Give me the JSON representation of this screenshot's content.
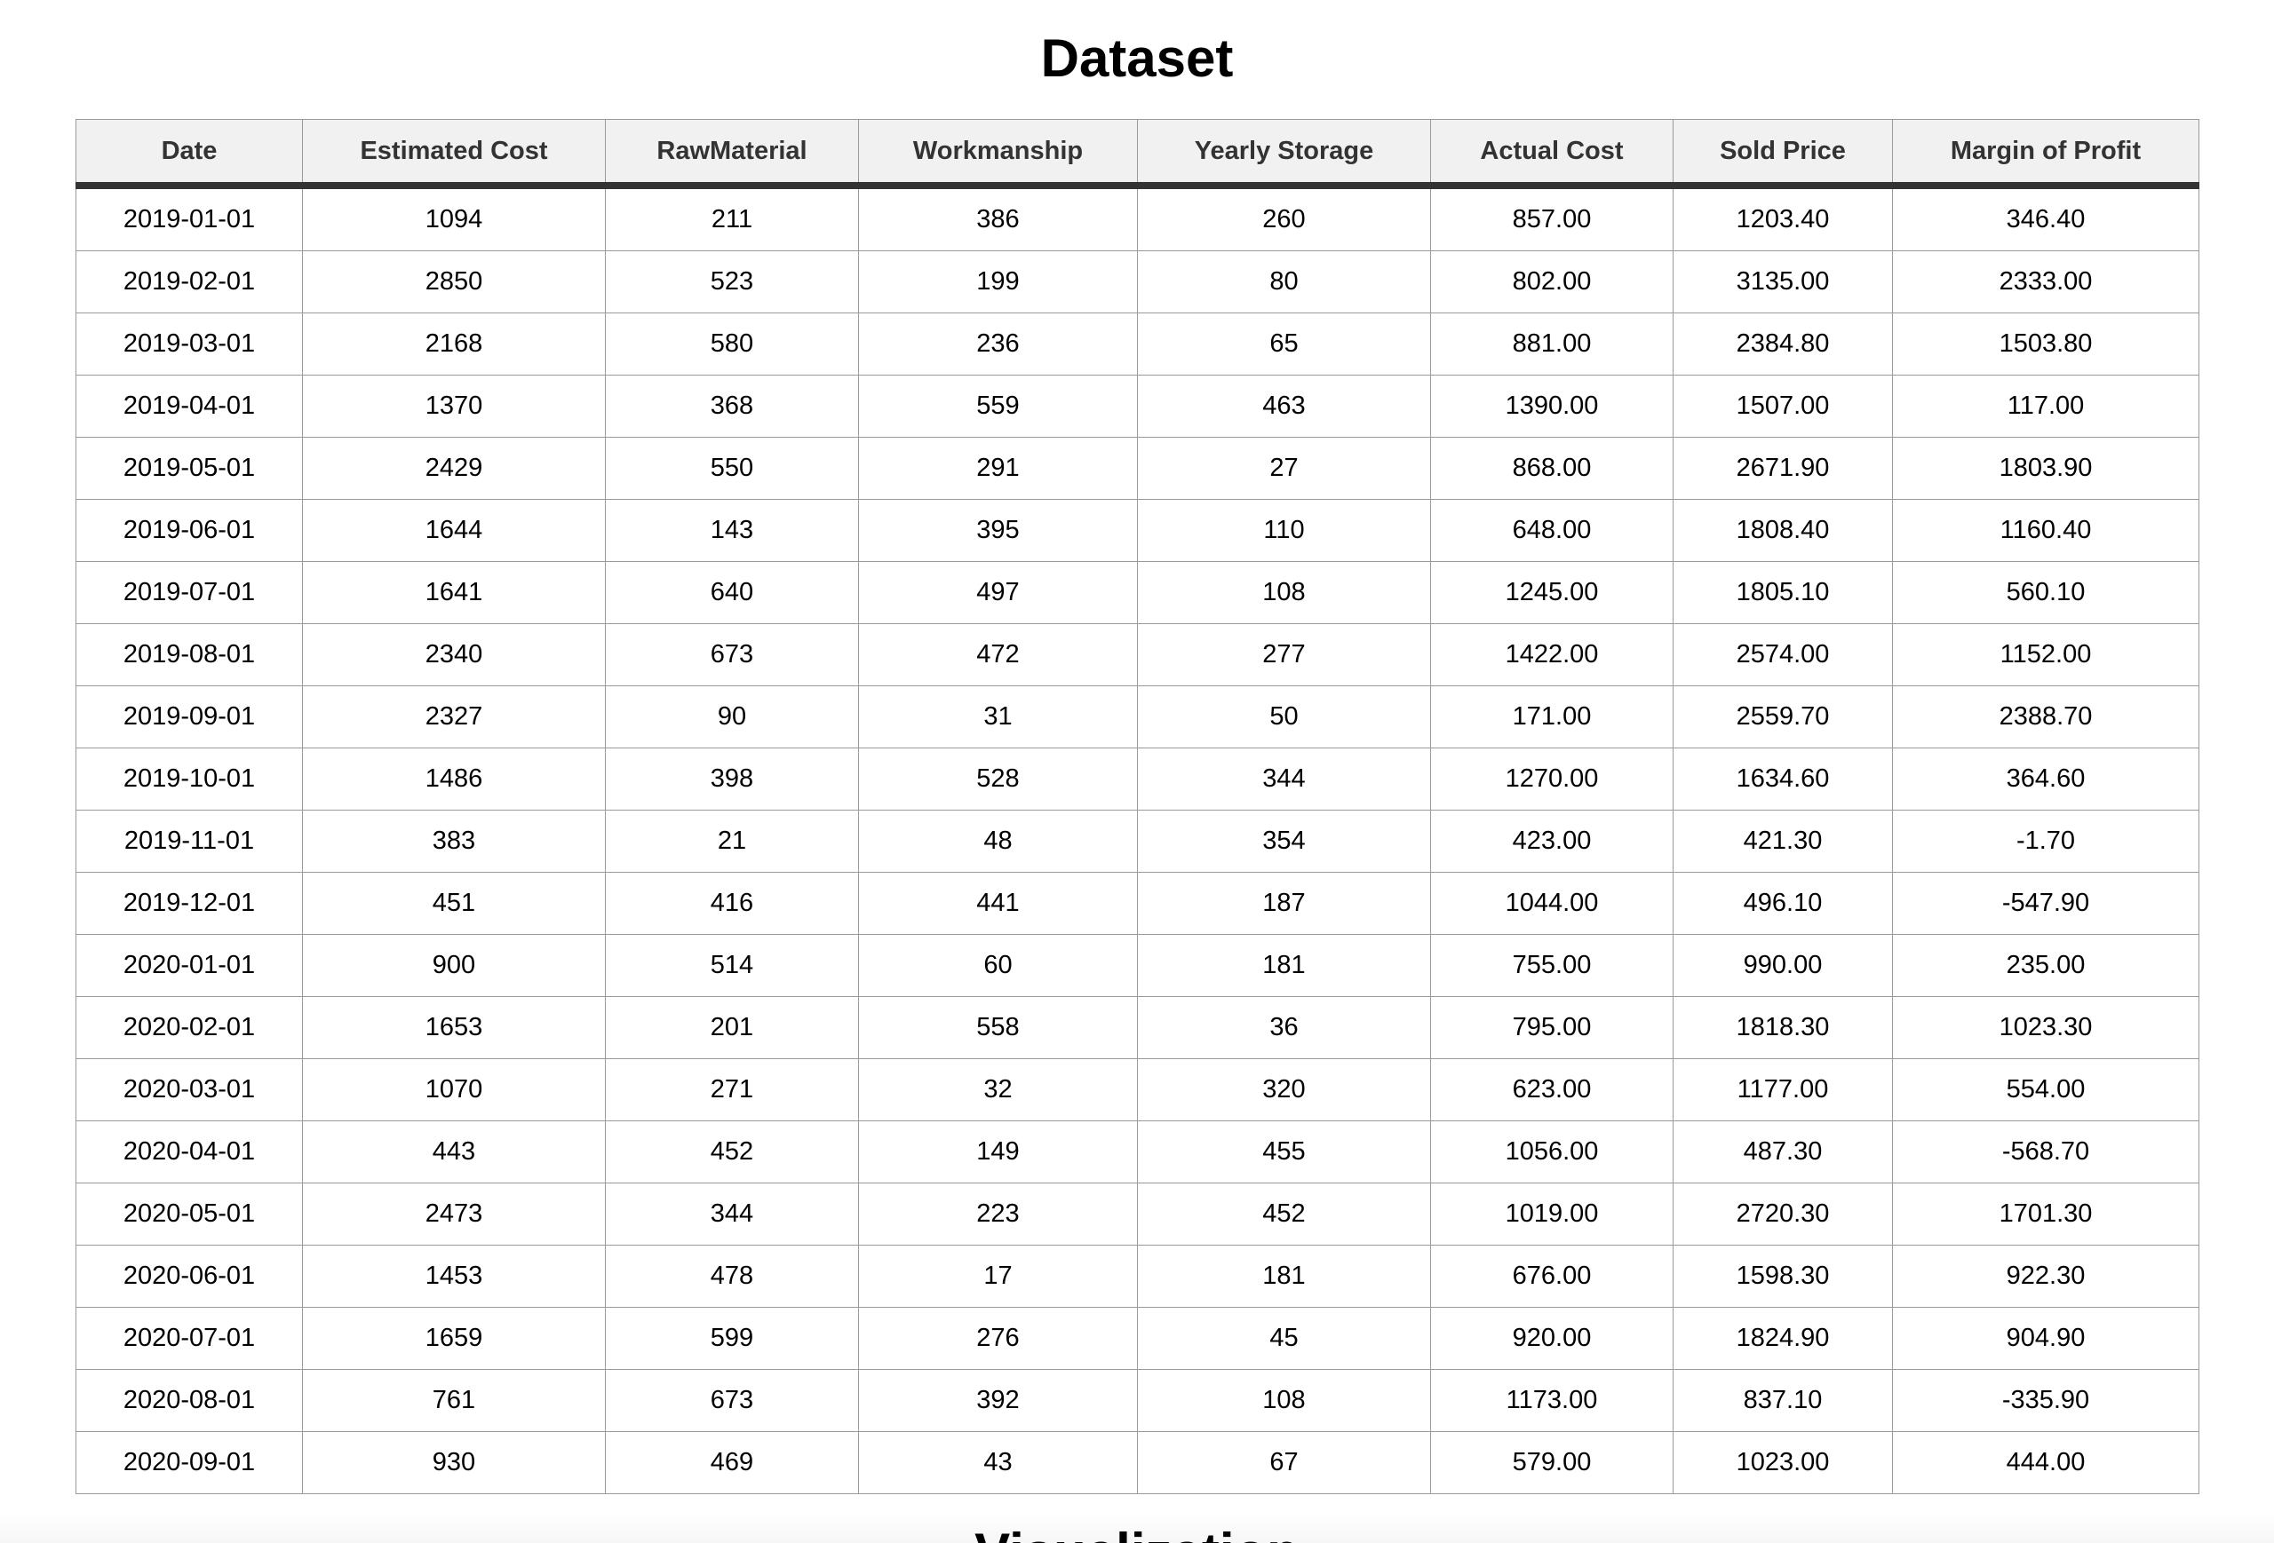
{
  "title": "Dataset",
  "table": {
    "columns": [
      "Date",
      "Estimated Cost",
      "RawMaterial",
      "Workmanship",
      "Yearly Storage",
      "Actual Cost",
      "Sold Price",
      "Margin of Profit"
    ],
    "rows": [
      [
        "2019-01-01",
        "1094",
        "211",
        "386",
        "260",
        "857.00",
        "1203.40",
        "346.40"
      ],
      [
        "2019-02-01",
        "2850",
        "523",
        "199",
        "80",
        "802.00",
        "3135.00",
        "2333.00"
      ],
      [
        "2019-03-01",
        "2168",
        "580",
        "236",
        "65",
        "881.00",
        "2384.80",
        "1503.80"
      ],
      [
        "2019-04-01",
        "1370",
        "368",
        "559",
        "463",
        "1390.00",
        "1507.00",
        "117.00"
      ],
      [
        "2019-05-01",
        "2429",
        "550",
        "291",
        "27",
        "868.00",
        "2671.90",
        "1803.90"
      ],
      [
        "2019-06-01",
        "1644",
        "143",
        "395",
        "110",
        "648.00",
        "1808.40",
        "1160.40"
      ],
      [
        "2019-07-01",
        "1641",
        "640",
        "497",
        "108",
        "1245.00",
        "1805.10",
        "560.10"
      ],
      [
        "2019-08-01",
        "2340",
        "673",
        "472",
        "277",
        "1422.00",
        "2574.00",
        "1152.00"
      ],
      [
        "2019-09-01",
        "2327",
        "90",
        "31",
        "50",
        "171.00",
        "2559.70",
        "2388.70"
      ],
      [
        "2019-10-01",
        "1486",
        "398",
        "528",
        "344",
        "1270.00",
        "1634.60",
        "364.60"
      ],
      [
        "2019-11-01",
        "383",
        "21",
        "48",
        "354",
        "423.00",
        "421.30",
        "-1.70"
      ],
      [
        "2019-12-01",
        "451",
        "416",
        "441",
        "187",
        "1044.00",
        "496.10",
        "-547.90"
      ],
      [
        "2020-01-01",
        "900",
        "514",
        "60",
        "181",
        "755.00",
        "990.00",
        "235.00"
      ],
      [
        "2020-02-01",
        "1653",
        "201",
        "558",
        "36",
        "795.00",
        "1818.30",
        "1023.30"
      ],
      [
        "2020-03-01",
        "1070",
        "271",
        "32",
        "320",
        "623.00",
        "1177.00",
        "554.00"
      ],
      [
        "2020-04-01",
        "443",
        "452",
        "149",
        "455",
        "1056.00",
        "487.30",
        "-568.70"
      ],
      [
        "2020-05-01",
        "2473",
        "344",
        "223",
        "452",
        "1019.00",
        "2720.30",
        "1701.30"
      ],
      [
        "2020-06-01",
        "1453",
        "478",
        "17",
        "181",
        "676.00",
        "1598.30",
        "922.30"
      ],
      [
        "2020-07-01",
        "1659",
        "599",
        "276",
        "45",
        "920.00",
        "1824.90",
        "904.90"
      ],
      [
        "2020-08-01",
        "761",
        "673",
        "392",
        "108",
        "1173.00",
        "837.10",
        "-335.90"
      ],
      [
        "2020-09-01",
        "930",
        "469",
        "43",
        "67",
        "579.00",
        "1023.00",
        "444.00"
      ]
    ]
  },
  "next_section_title": "Visualization"
}
